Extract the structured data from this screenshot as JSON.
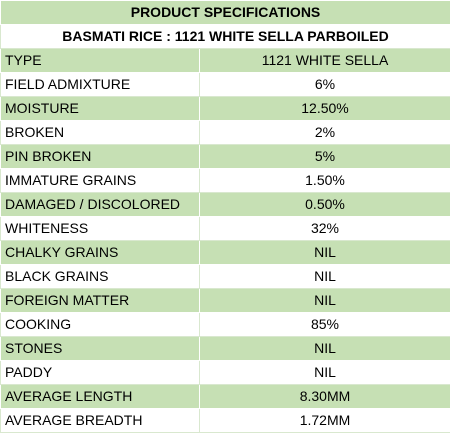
{
  "title": "PRODUCT SPECIFICATIONS",
  "subtitle": "BASMATI RICE : 1121 WHITE SELLA PARBOILED",
  "rows": [
    {
      "label": "TYPE",
      "value": "1121 WHITE SELLA"
    },
    {
      "label": "FIELD ADMIXTURE",
      "value": "6%"
    },
    {
      "label": "MOISTURE",
      "value": "12.50%"
    },
    {
      "label": "BROKEN",
      "value": "2%"
    },
    {
      "label": "PIN BROKEN",
      "value": "5%"
    },
    {
      "label": "IMMATURE GRAINS",
      "value": "1.50%"
    },
    {
      "label": "DAMAGED / DISCOLORED",
      "value": "0.50%"
    },
    {
      "label": "WHITENESS",
      "value": "32%"
    },
    {
      "label": "CHALKY GRAINS",
      "value": "NIL"
    },
    {
      "label": "BLACK GRAINS",
      "value": "NIL"
    },
    {
      "label": "FOREIGN MATTER",
      "value": "NIL"
    },
    {
      "label": "COOKING",
      "value": "85%"
    },
    {
      "label": "STONES",
      "value": "NIL"
    },
    {
      "label": "PADDY",
      "value": "NIL"
    },
    {
      "label": "AVERAGE LENGTH",
      "value": "8.30MM"
    },
    {
      "label": "AVERAGE BREADTH",
      "value": "1.72MM"
    }
  ],
  "colors": {
    "band_green": "#c6e0b4",
    "band_white": "#ffffff"
  }
}
